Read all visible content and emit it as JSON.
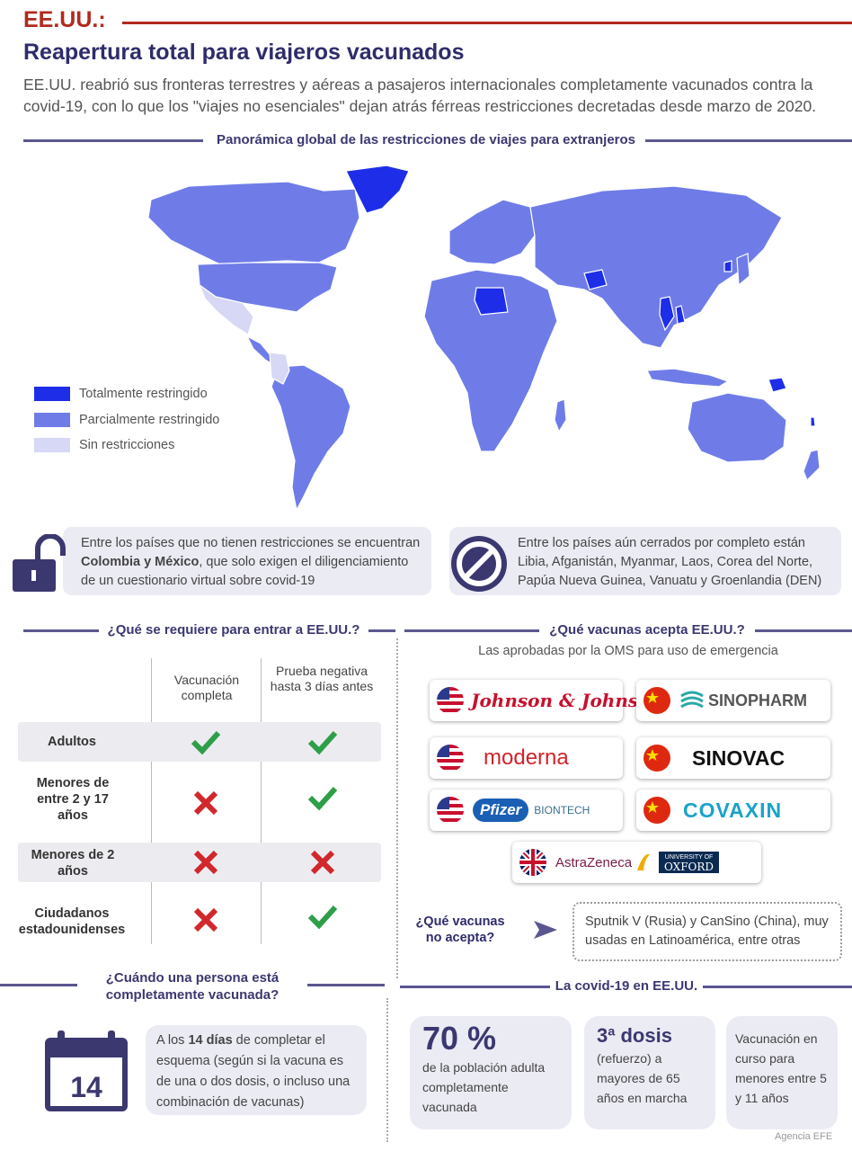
{
  "header": {
    "kicker": "EE.UU.:",
    "headline": "Reapertura total para viajeros vacunados",
    "lede": "EE.UU. reabrió sus fronteras terrestres y aéreas a pasajeros internacionales completamente vacunados contra la covid-19, con lo que los \"viajes no esenciales\" dejan atrás férreas restricciones decretadas desde marzo de 2020."
  },
  "map": {
    "title": "Panorámica global de las restricciones de viajes para extranjeros",
    "legend": [
      {
        "label": "Totalmente restringido",
        "color": "#1e2ee8"
      },
      {
        "label": "Parcialmente restringido",
        "color": "#6f7ce8"
      },
      {
        "label": "Sin restricciones",
        "color": "#d6d8f5"
      }
    ]
  },
  "notes": {
    "open": {
      "pre": "Entre los países que no tienen restricciones se encuentran ",
      "bold": "Colombia y México",
      "post": ", que solo exigen el diligenciamiento de un cuestionario virtual sobre covid-19"
    },
    "closed": "Entre los países aún cerrados por completo están Libia, Afganistán, Myanmar, Laos, Corea del Norte, Papúa Nueva Guinea, Vanuatu y Groenlandia (DEN)"
  },
  "requirements": {
    "title": "¿Qué se requiere para entrar a EE.UU.?",
    "col1": "Vacunación completa",
    "col2": "Prueba negativa hasta 3 días antes",
    "rows": [
      {
        "label": "Adultos",
        "vacc": true,
        "test": true
      },
      {
        "label": "Menores de entre 2 y 17 años",
        "vacc": false,
        "test": true
      },
      {
        "label": "Menores de 2 años",
        "vacc": false,
        "test": false
      },
      {
        "label": "Ciudadanos estadounidenses",
        "vacc": false,
        "test": true
      }
    ]
  },
  "vaccines": {
    "title": "¿Qué vacunas acepta EE.UU.?",
    "subtitle": "Las aprobadas por la OMS para uso de emergencia",
    "logos": {
      "jj": "Johnson & Johnson",
      "sinopharm": "SINOPHARM",
      "moderna": "moderna",
      "sinovac": "SINOVAC",
      "pfizer": "Pfizer",
      "biontech": "BIONTECH",
      "covaxin": "COVAXIN",
      "astrazeneca": "AstraZeneca",
      "oxford_top": "UNIVERSITY OF",
      "oxford": "OXFORD"
    },
    "not_accepted_q": "¿Qué vacunas no acepta?",
    "not_accepted": "Sputnik V (Rusia) y CanSino (China), muy usadas en Latinoamérica, entre otras"
  },
  "when": {
    "title": "¿Cuándo una persona está completamente vacunada?",
    "calendar_day": "14",
    "pre": "A los ",
    "bold": "14 días",
    "post": " de completar el esquema (según si la vacuna es de una o dos dosis, o incluso una combinación de vacunas)"
  },
  "covid": {
    "title": "La covid-19 en EE.UU.",
    "stat1_big": "70 %",
    "stat1_text": "de la población adulta completamente vacunada",
    "stat2_big": "3ª dosis",
    "stat2_text": "(refuerzo) a mayores de 65 años en marcha",
    "stat3_text": "Vacunación en curso para menores entre 5 y 11 años"
  },
  "credit": "Agencia EFE",
  "colors": {
    "accent_red": "#b02a1e",
    "navy": "#2f2c6b",
    "full": "#1e2ee8",
    "partial": "#6f7ce8",
    "none": "#d6d8f5",
    "check": "#2e9e4a",
    "cross": "#d0282d"
  }
}
